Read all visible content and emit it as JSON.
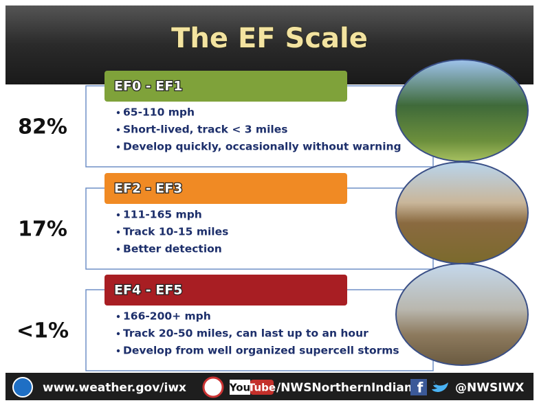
{
  "header": {
    "title": "The EF Scale"
  },
  "rows": [
    {
      "percent": "82%",
      "label": "EF0 - EF1",
      "bullets": [
        "65-110 mph",
        "Short-lived, track < 3 miles",
        "Develop quickly, occasionally without warning"
      ]
    },
    {
      "percent": "17%",
      "label": "EF2 - EF3",
      "bullets": [
        "111-165 mph",
        "Track 10-15 miles",
        "Better detection"
      ]
    },
    {
      "percent": "<1%",
      "label": "EF4 - EF5",
      "bullets": [
        "166-200+ mph",
        "Track 20-50 miles, can last up to an hour",
        "Develop from well organized supercell storms"
      ]
    }
  ],
  "footer": {
    "website": "www.weather.gov/iwx",
    "youtube_you": "You",
    "youtube_tube": "Tube",
    "youtube_handle": "/NWSNorthernIndiana",
    "facebook": "f",
    "twitter_handle": "@NWSIWX"
  }
}
